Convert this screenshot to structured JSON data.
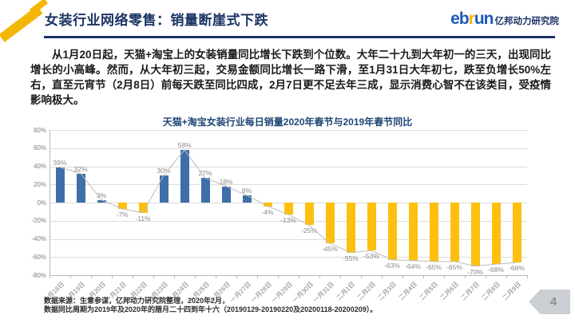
{
  "header": {
    "title": "女装行业网络零售：销量断崖式下跌",
    "logo": {
      "brand_parts": [
        "eb",
        "r",
        "un"
      ],
      "suffix": "亿邦动力研究院"
    }
  },
  "paragraph": "从1月20日起，天猫+淘宝上的女装销量同比增长下跌到个位数。大年二十九到大年初一的三天，出现同比增长的小高峰。然而，从大年初三起，交易金额同比增长一路下滑，至1月31日大年初七，跌至负增长50%左右，直至元宵节（2月8日）前每天跌至同比四成，2月7日更不足去年三成，显示消费心智不在该类目，受疫情影响极大。",
  "chart_data": {
    "type": "bar",
    "title": "天猫+淘宝女装行业每日销量2020年春节与2019年春节同比",
    "categories": [
      "一月18日",
      "一月19日",
      "一月20日",
      "一月21日",
      "一月22日",
      "一月23日",
      "一月24日",
      "一月25日",
      "一月26日",
      "一月27日",
      "一月28日",
      "一月29日",
      "一月30日",
      "一月31日",
      "二月1日",
      "二月2日",
      "二月3日",
      "二月4日",
      "二月5日",
      "二月6日",
      "二月7日",
      "二月8日",
      "二月9日"
    ],
    "values": [
      39,
      32,
      3,
      -7,
      -11,
      30,
      58,
      27,
      18,
      8,
      -4,
      -13,
      -25,
      -45,
      -55,
      -53,
      -63,
      -64,
      -65,
      -65,
      -70,
      -68,
      -66
    ],
    "unit": "%",
    "ylim": [
      -80,
      80
    ],
    "ytick_step": 20,
    "grid": true,
    "legend": "none",
    "positive_color": "#3E6FA8",
    "negative_color": "#FDC010",
    "line_color": "#bdbdbd"
  },
  "footnotes": {
    "line1": "数据来源：生意参谋，亿邦动力研究院整理，2020年2月，",
    "line2": "数据同比周期为2019年及2020年的腊月二十四到年十六（20190129-20190220及20200118-20200209）。"
  },
  "page_number": "4",
  "colors": {
    "accent_navy": "#1b3464",
    "accent_yellow": "#F2B705"
  }
}
